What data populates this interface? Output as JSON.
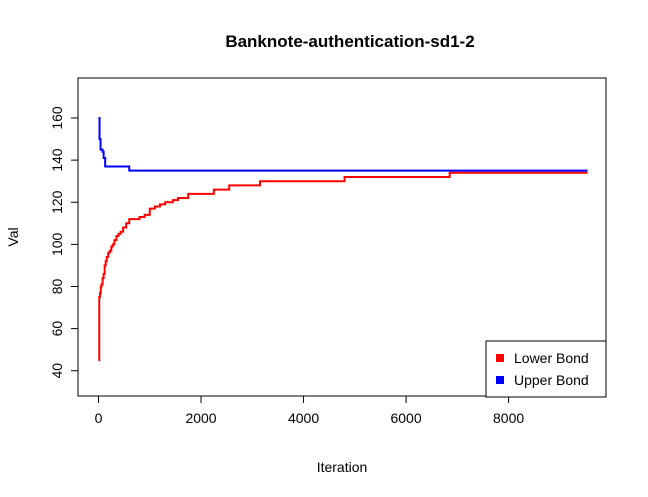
{
  "chart_data": {
    "type": "line",
    "title": "Banknote-authentication-sd1-2",
    "xlabel": "Iteration",
    "ylabel": "Val",
    "xlim": [
      -400,
      9900
    ],
    "ylim": [
      28,
      179
    ],
    "xticks": [
      0,
      2000,
      4000,
      6000,
      8000
    ],
    "yticks": [
      40,
      60,
      80,
      100,
      120,
      140,
      160
    ],
    "grid": false,
    "legend_position": "bottom-right",
    "step": true,
    "series": [
      {
        "name": "Lower Bond",
        "color": "#ff0000",
        "x": [
          0,
          15,
          30,
          45,
          60,
          80,
          100,
          120,
          140,
          160,
          190,
          220,
          250,
          280,
          310,
          350,
          390,
          430,
          480,
          540,
          600,
          700,
          800,
          900,
          1000,
          1100,
          1200,
          1300,
          1450,
          1550,
          1750,
          2050,
          2250,
          2350,
          2550,
          2900,
          3150,
          3500,
          4000,
          4500,
          4800,
          5300,
          6000,
          6600,
          6850,
          7500,
          8500,
          9540
        ],
        "y": [
          45,
          75,
          77,
          80,
          81,
          84,
          86,
          90,
          92,
          94,
          96,
          97,
          99,
          100,
          102,
          104,
          105,
          106,
          108,
          110,
          112,
          112,
          113,
          114,
          117,
          118,
          119,
          120,
          121,
          122,
          124,
          124,
          126,
          126,
          128,
          128,
          130,
          130,
          130,
          130,
          132,
          132,
          132,
          132,
          134,
          134,
          134,
          134
        ]
      },
      {
        "name": "Upper Bond",
        "color": "#0000ff",
        "x": [
          0,
          20,
          40,
          60,
          80,
          100,
          130,
          600,
          9540
        ],
        "y": [
          160,
          150,
          145,
          145,
          144,
          141,
          137,
          135,
          135
        ]
      }
    ]
  }
}
